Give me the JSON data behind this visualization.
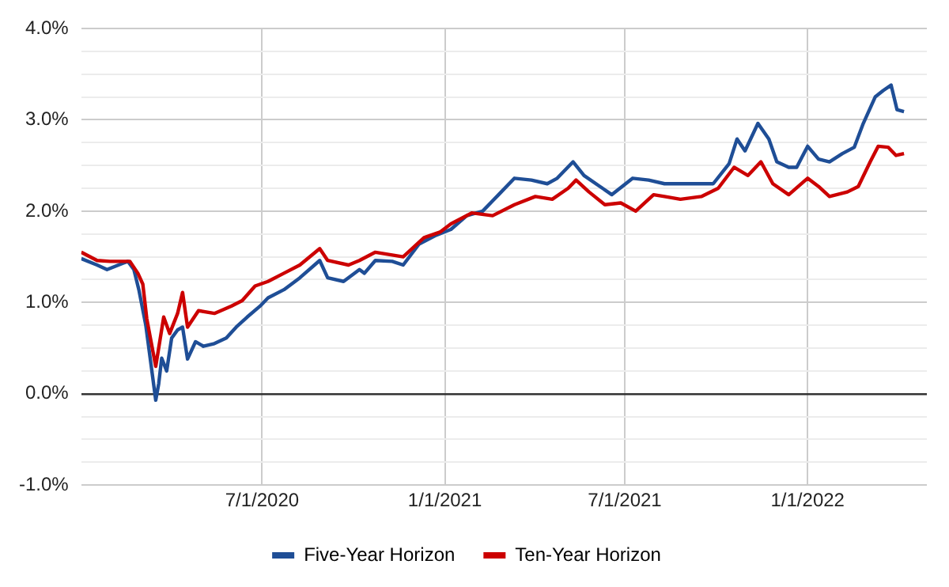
{
  "chart_data": {
    "type": "line",
    "xlim": [
      "2020-01-01",
      "2022-05-01"
    ],
    "xticks": [
      {
        "value": "2020-07-01",
        "label": "7/1/2020"
      },
      {
        "value": "2021-01-01",
        "label": "1/1/2021"
      },
      {
        "value": "2021-07-01",
        "label": "7/1/2021"
      },
      {
        "value": "2022-01-01",
        "label": "1/1/2022"
      }
    ],
    "ylim": [
      -1,
      4
    ],
    "yticks": [
      {
        "value": -1,
        "label": "-1.0%"
      },
      {
        "value": -0.75,
        "label": null
      },
      {
        "value": -0.5,
        "label": null
      },
      {
        "value": -0.25,
        "label": null
      },
      {
        "value": 0,
        "label": "0.0%"
      },
      {
        "value": 0.25,
        "label": null
      },
      {
        "value": 0.5,
        "label": null
      },
      {
        "value": 0.75,
        "label": null
      },
      {
        "value": 1,
        "label": "1.0%"
      },
      {
        "value": 1.25,
        "label": null
      },
      {
        "value": 1.5,
        "label": null
      },
      {
        "value": 1.75,
        "label": null
      },
      {
        "value": 2,
        "label": "2.0%"
      },
      {
        "value": 2.25,
        "label": null
      },
      {
        "value": 2.5,
        "label": null
      },
      {
        "value": 2.75,
        "label": null
      },
      {
        "value": 3,
        "label": "3.0%"
      },
      {
        "value": 3.25,
        "label": null
      },
      {
        "value": 3.5,
        "label": null
      },
      {
        "value": 3.75,
        "label": null
      },
      {
        "value": 4,
        "label": "4.0%"
      }
    ],
    "grid": true,
    "legend": "bottom",
    "marker": "none",
    "line_style": "solid",
    "series": [
      {
        "name": "Five-Year Horizon",
        "color": "#1f4e96",
        "x": [
          "2020-01-01",
          "2020-01-17",
          "2020-01-27",
          "2020-02-12",
          "2020-02-17",
          "2020-02-23",
          "2020-02-28",
          "2020-03-06",
          "2020-03-11",
          "2020-03-16",
          "2020-03-19",
          "2020-03-22",
          "2020-03-27",
          "2020-04-01",
          "2020-04-07",
          "2020-04-12",
          "2020-04-17",
          "2020-04-25",
          "2020-05-03",
          "2020-05-14",
          "2020-05-26",
          "2020-06-05",
          "2020-06-16",
          "2020-06-29",
          "2020-07-07",
          "2020-07-23",
          "2020-08-08",
          "2020-08-28",
          "2020-09-05",
          "2020-09-21",
          "2020-10-07",
          "2020-10-12",
          "2020-10-23",
          "2020-11-09",
          "2020-11-20",
          "2020-12-06",
          "2020-12-22",
          "2021-01-07",
          "2021-01-23",
          "2021-02-08",
          "2021-02-24",
          "2021-03-12",
          "2021-03-29",
          "2021-04-14",
          "2021-04-24",
          "2021-05-10",
          "2021-05-21",
          "2021-06-06",
          "2021-06-18",
          "2021-07-09",
          "2021-07-25",
          "2021-08-10",
          "2021-08-26",
          "2021-09-11",
          "2021-09-28",
          "2021-10-14",
          "2021-10-22",
          "2021-10-30",
          "2021-11-12",
          "2021-11-23",
          "2021-12-01",
          "2021-12-13",
          "2021-12-21",
          "2022-01-01",
          "2022-01-12",
          "2022-01-23",
          "2022-02-05",
          "2022-02-17",
          "2022-02-26",
          "2022-03-10",
          "2022-03-18",
          "2022-03-26",
          "2022-04-01",
          "2022-04-08"
        ],
        "values": [
          1.48,
          1.41,
          1.36,
          1.43,
          1.45,
          1.36,
          1.14,
          0.75,
          0.34,
          -0.07,
          0.11,
          0.39,
          0.25,
          0.61,
          0.7,
          0.73,
          0.38,
          0.57,
          0.52,
          0.55,
          0.61,
          0.73,
          0.84,
          0.96,
          1.05,
          1.14,
          1.27,
          1.46,
          1.27,
          1.23,
          1.36,
          1.32,
          1.46,
          1.45,
          1.41,
          1.64,
          1.73,
          1.8,
          1.95,
          2.0,
          2.18,
          2.36,
          2.34,
          2.3,
          2.36,
          2.54,
          2.39,
          2.27,
          2.18,
          2.36,
          2.34,
          2.3,
          2.3,
          2.3,
          2.3,
          2.52,
          2.79,
          2.66,
          2.96,
          2.79,
          2.54,
          2.48,
          2.48,
          2.71,
          2.57,
          2.54,
          2.63,
          2.7,
          2.96,
          3.25,
          3.32,
          3.38,
          3.11,
          3.09
        ]
      },
      {
        "name": "Ten-Year Horizon",
        "color": "#cc0000",
        "x": [
          "2020-01-01",
          "2020-01-17",
          "2020-01-30",
          "2020-02-12",
          "2020-02-19",
          "2020-02-27",
          "2020-03-03",
          "2020-03-07",
          "2020-03-16",
          "2020-03-24",
          "2020-03-30",
          "2020-04-07",
          "2020-04-12",
          "2020-04-17",
          "2020-04-28",
          "2020-05-14",
          "2020-05-31",
          "2020-06-11",
          "2020-06-24",
          "2020-07-07",
          "2020-07-23",
          "2020-08-08",
          "2020-08-28",
          "2020-09-05",
          "2020-09-26",
          "2020-10-07",
          "2020-10-23",
          "2020-11-20",
          "2020-12-11",
          "2020-12-27",
          "2021-01-07",
          "2021-01-28",
          "2021-02-18",
          "2021-03-12",
          "2021-04-02",
          "2021-04-19",
          "2021-05-05",
          "2021-05-13",
          "2021-05-26",
          "2021-06-11",
          "2021-06-27",
          "2021-07-12",
          "2021-07-30",
          "2021-08-10",
          "2021-08-26",
          "2021-09-16",
          "2021-10-03",
          "2021-10-19",
          "2021-11-02",
          "2021-11-15",
          "2021-11-27",
          "2021-12-13",
          "2022-01-01",
          "2022-01-12",
          "2022-01-23",
          "2022-02-10",
          "2022-02-21",
          "2022-03-05",
          "2022-03-13",
          "2022-03-23",
          "2022-03-31",
          "2022-04-08"
        ],
        "values": [
          1.55,
          1.46,
          1.45,
          1.45,
          1.45,
          1.32,
          1.2,
          0.82,
          0.3,
          0.84,
          0.66,
          0.88,
          1.11,
          0.73,
          0.91,
          0.88,
          0.96,
          1.02,
          1.18,
          1.23,
          1.32,
          1.41,
          1.59,
          1.46,
          1.41,
          1.46,
          1.55,
          1.5,
          1.71,
          1.77,
          1.86,
          1.98,
          1.95,
          2.07,
          2.16,
          2.13,
          2.25,
          2.34,
          2.21,
          2.07,
          2.09,
          2.0,
          2.18,
          2.16,
          2.13,
          2.16,
          2.25,
          2.48,
          2.39,
          2.54,
          2.3,
          2.18,
          2.36,
          2.27,
          2.16,
          2.21,
          2.27,
          2.54,
          2.71,
          2.7,
          2.61,
          2.63
        ]
      }
    ]
  }
}
